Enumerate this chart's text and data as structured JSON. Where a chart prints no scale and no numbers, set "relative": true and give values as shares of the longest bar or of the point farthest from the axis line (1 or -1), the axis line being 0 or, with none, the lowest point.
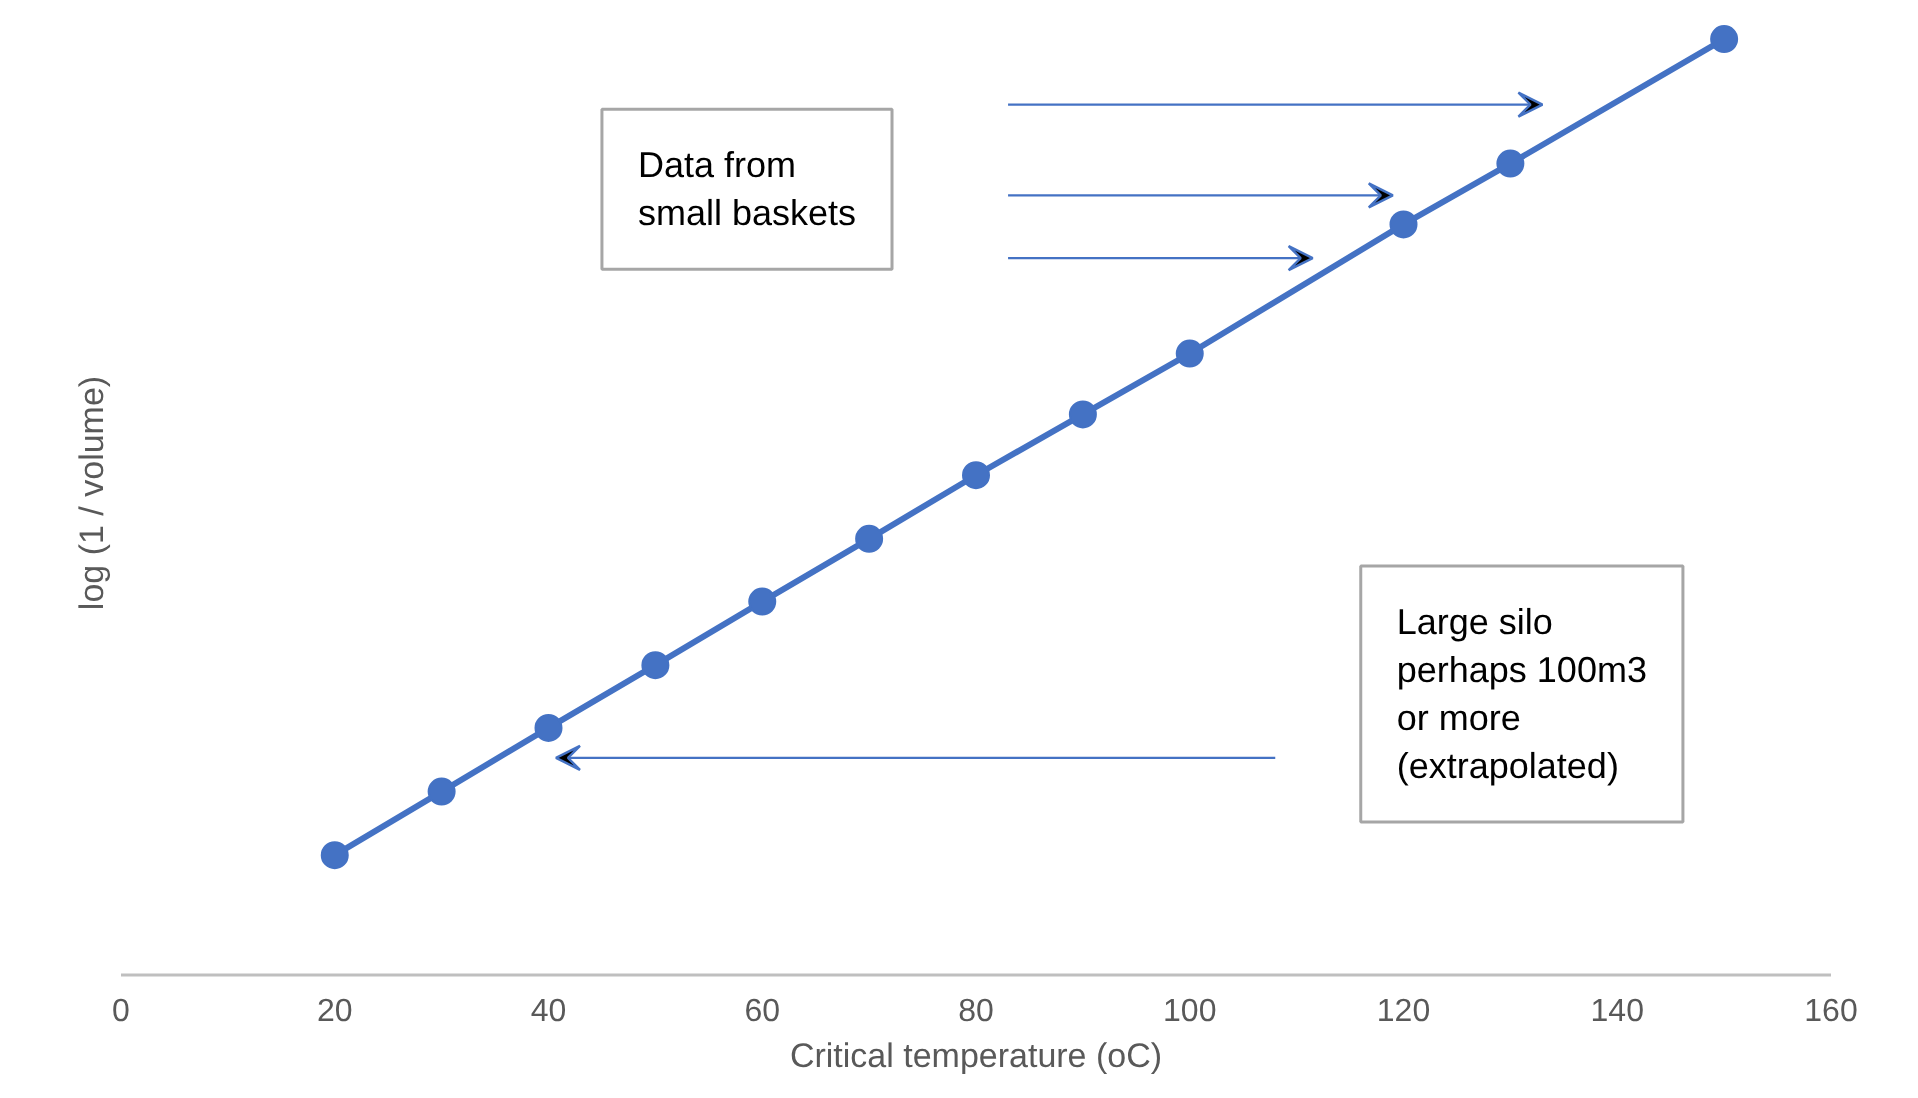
{
  "chart_data": {
    "type": "line",
    "relative": true,
    "xlabel": "Critical temperature (oC)",
    "ylabel": "log (1 / volume)",
    "x": [
      20,
      30,
      40,
      50,
      60,
      70,
      80,
      90,
      100,
      120,
      130,
      150
    ],
    "xlim": [
      0,
      160
    ],
    "xticks": [
      0,
      20,
      40,
      60,
      80,
      100,
      120,
      140,
      160
    ],
    "series": [
      {
        "color": "#4472c4",
        "values": [
          0.128,
          0.196,
          0.264,
          0.331,
          0.399,
          0.466,
          0.534,
          0.599,
          0.664,
          0.802,
          0.867,
          1.0
        ]
      }
    ],
    "marker": "circle",
    "line_style": "solid",
    "annotations": [
      "Data from\nsmall baskets",
      "Large silo\nperhaps 100m3\nor more\n(extrapolated)"
    ]
  }
}
